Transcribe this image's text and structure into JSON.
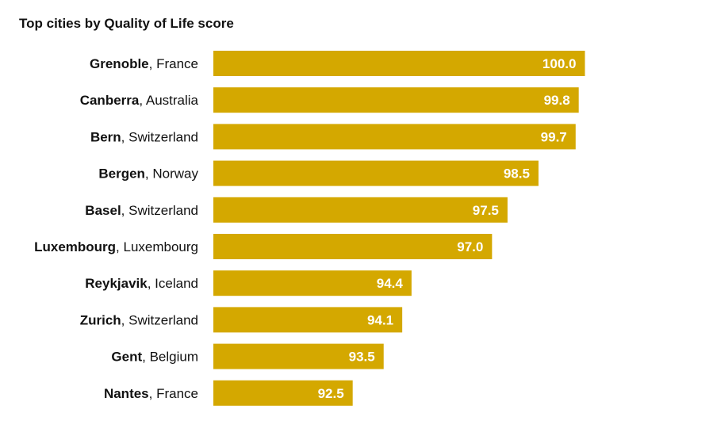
{
  "chart_data": {
    "type": "bar",
    "orientation": "horizontal",
    "title": "Top cities by Quality of Life score",
    "xlabel": "",
    "ylabel": "",
    "xlim": [
      88,
      100.5
    ],
    "grid": false,
    "bar_color": "#D4A800",
    "value_label_color": "#ffffff",
    "categories": [
      {
        "city": "Grenoble",
        "country": "France",
        "separator": ", ",
        "value": 100.0,
        "value_label": "100.0"
      },
      {
        "city": "Canberra",
        "country": "Australia",
        "separator": ", ",
        "value": 99.8,
        "value_label": "99.8"
      },
      {
        "city": "Bern",
        "country": "Switzerland",
        "separator": ", ",
        "value": 99.7,
        "value_label": "99.7"
      },
      {
        "city": "Bergen",
        "country": "Norway",
        "separator": ", ",
        "value": 98.5,
        "value_label": "98.5"
      },
      {
        "city": "Basel",
        "country": "Switzerland",
        "separator": ", ",
        "value": 97.5,
        "value_label": "97.5"
      },
      {
        "city": "Luxembourg",
        "country": "Luxembourg",
        "separator": ", ",
        "value": 97.0,
        "value_label": "97.0"
      },
      {
        "city": "Reykjavik",
        "country": "Iceland",
        "separator": ", ",
        "value": 94.4,
        "value_label": "94.4"
      },
      {
        "city": "Zurich",
        "country": "Switzerland",
        "separator": ", ",
        "value": 94.1,
        "value_label": "94.1"
      },
      {
        "city": "Gent",
        "country": "Belgium",
        "separator": ", ",
        "value": 93.5,
        "value_label": "93.5"
      },
      {
        "city": "Nantes",
        "country": "France",
        "separator": ", ",
        "value": 92.5,
        "value_label": "92.5"
      }
    ]
  }
}
